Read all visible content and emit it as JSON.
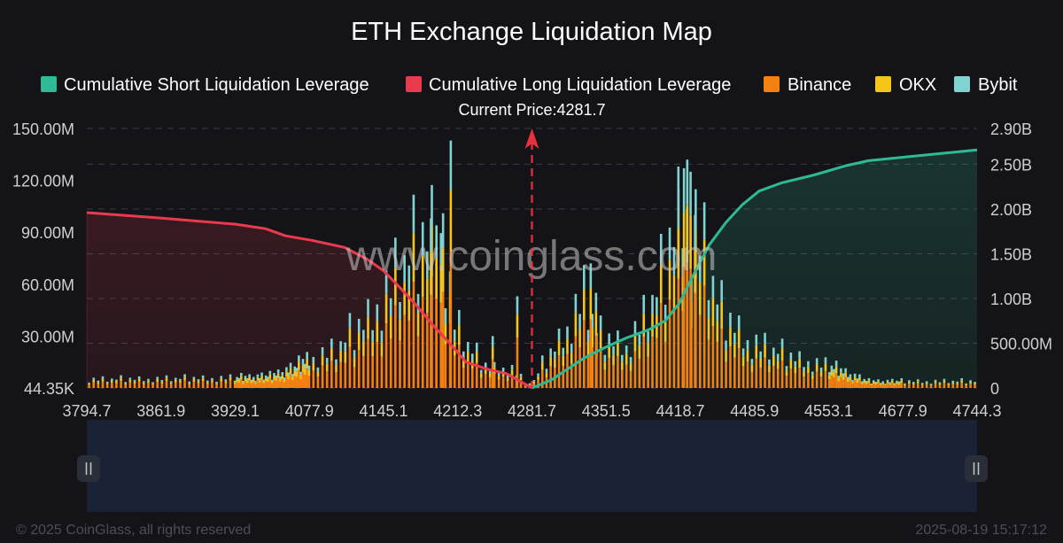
{
  "chart_data": {
    "type": "bar",
    "title": "ETH Exchange Liquidation Map",
    "current_price_label": "Current Price:4281.7",
    "current_price": 4281.7,
    "x_ticks": [
      "3794.7",
      "3861.9",
      "3929.1",
      "4077.9",
      "4145.1",
      "4212.3",
      "4281.7",
      "4351.5",
      "4418.7",
      "4485.9",
      "4553.1",
      "4677.9",
      "4744.3"
    ],
    "xlim": [
      3794.7,
      4744.3
    ],
    "y_left_ticks": [
      "44.35K",
      "30.00M",
      "60.00M",
      "90.00M",
      "120.00M",
      "150.00M"
    ],
    "y_left_lim": [
      0,
      150000000
    ],
    "y_right_ticks": [
      "0",
      "500.00M",
      "1.00B",
      "1.50B",
      "2.00B",
      "2.50B",
      "2.90B"
    ],
    "y_right_lim": [
      0,
      2900000000
    ],
    "legend": [
      {
        "label": "Cumulative Short Liquidation Leverage",
        "color": "#2fb995"
      },
      {
        "label": "Cumulative Long Liquidation Leverage",
        "color": "#ea3a4e"
      },
      {
        "label": "Binance",
        "color": "#f38112"
      },
      {
        "label": "OKX",
        "color": "#f5c519"
      },
      {
        "label": "Bybit",
        "color": "#7fd3d0"
      }
    ],
    "legend_position": "top",
    "grid": true,
    "bars_per_side": 118,
    "bar_profile_left": [
      [
        3794.7,
        5000000
      ],
      [
        3930,
        6000000
      ],
      [
        4000,
        7000000
      ],
      [
        4050,
        12000000
      ],
      [
        4100,
        22000000
      ],
      [
        4130,
        40000000
      ],
      [
        4160,
        70000000
      ],
      [
        4180,
        85000000
      ],
      [
        4195,
        100000000
      ],
      [
        4210,
        38000000
      ],
      [
        4225,
        22000000
      ],
      [
        4240,
        12000000
      ],
      [
        4262,
        12000000
      ],
      [
        4275,
        4000000
      ],
      [
        4281.7,
        2000000
      ]
    ],
    "bar_profile_right": [
      [
        4281.7,
        2000000
      ],
      [
        4290,
        12000000
      ],
      [
        4310,
        30000000
      ],
      [
        4330,
        55000000
      ],
      [
        4345,
        30000000
      ],
      [
        4370,
        25000000
      ],
      [
        4385,
        40000000
      ],
      [
        4400,
        60000000
      ],
      [
        4420,
        110000000
      ],
      [
        4435,
        95000000
      ],
      [
        4455,
        45000000
      ],
      [
        4480,
        28000000
      ],
      [
        4520,
        18000000
      ],
      [
        4560,
        12000000
      ],
      [
        4620,
        4000000
      ],
      [
        4744.3,
        4000000
      ]
    ],
    "bar_spikes": [
      {
        "price": 4206,
        "total": 143000000
      },
      {
        "price": 4199,
        "total": 101000000
      },
      {
        "price": 4193,
        "total": 94000000
      },
      {
        "price": 4188,
        "total": 98000000
      },
      {
        "price": 4268,
        "total": 53000000
      },
      {
        "price": 4245,
        "total": 30000000
      },
      {
        "price": 4425,
        "total": 132000000
      },
      {
        "price": 4422,
        "total": 127000000
      },
      {
        "price": 4428,
        "total": 125000000
      },
      {
        "price": 4417,
        "total": 115000000
      },
      {
        "price": 4432,
        "total": 100000000
      },
      {
        "price": 4342,
        "total": 55000000
      },
      {
        "price": 4337,
        "total": 72000000
      }
    ],
    "exchange_share": {
      "Binance": 0.55,
      "OKX": 0.25,
      "Bybit": 0.2
    },
    "series": [
      {
        "name": "Cumulative Long Liquidation Leverage",
        "axis": "right",
        "points": [
          [
            3794.7,
            1960000000
          ],
          [
            3860,
            1900000000
          ],
          [
            3930,
            1830000000
          ],
          [
            3990,
            1780000000
          ],
          [
            4030,
            1700000000
          ],
          [
            4080,
            1650000000
          ],
          [
            4110,
            1570000000
          ],
          [
            4130,
            1440000000
          ],
          [
            4145,
            1310000000
          ],
          [
            4160,
            1120000000
          ],
          [
            4175,
            920000000
          ],
          [
            4190,
            700000000
          ],
          [
            4205,
            500000000
          ],
          [
            4220,
            290000000
          ],
          [
            4240,
            210000000
          ],
          [
            4258,
            160000000
          ],
          [
            4270,
            80000000
          ],
          [
            4281.7,
            0
          ]
        ]
      },
      {
        "name": "Cumulative Short Liquidation Leverage",
        "axis": "right",
        "points": [
          [
            4281.7,
            0
          ],
          [
            4300,
            90000000
          ],
          [
            4330,
            330000000
          ],
          [
            4350,
            450000000
          ],
          [
            4370,
            560000000
          ],
          [
            4390,
            650000000
          ],
          [
            4405,
            750000000
          ],
          [
            4418,
            950000000
          ],
          [
            4430,
            1250000000
          ],
          [
            4445,
            1600000000
          ],
          [
            4460,
            1850000000
          ],
          [
            4475,
            2050000000
          ],
          [
            4490,
            2200000000
          ],
          [
            4510,
            2290000000
          ],
          [
            4540,
            2380000000
          ],
          [
            4580,
            2480000000
          ],
          [
            4620,
            2540000000
          ],
          [
            4680,
            2580000000
          ],
          [
            4744.3,
            2660000000
          ]
        ]
      }
    ]
  },
  "watermark": "www.coinglass.com",
  "footer": {
    "copyright": "© 2025 CoinGlass, all rights reserved",
    "timestamp": "2025-08-19 15:17:12"
  }
}
